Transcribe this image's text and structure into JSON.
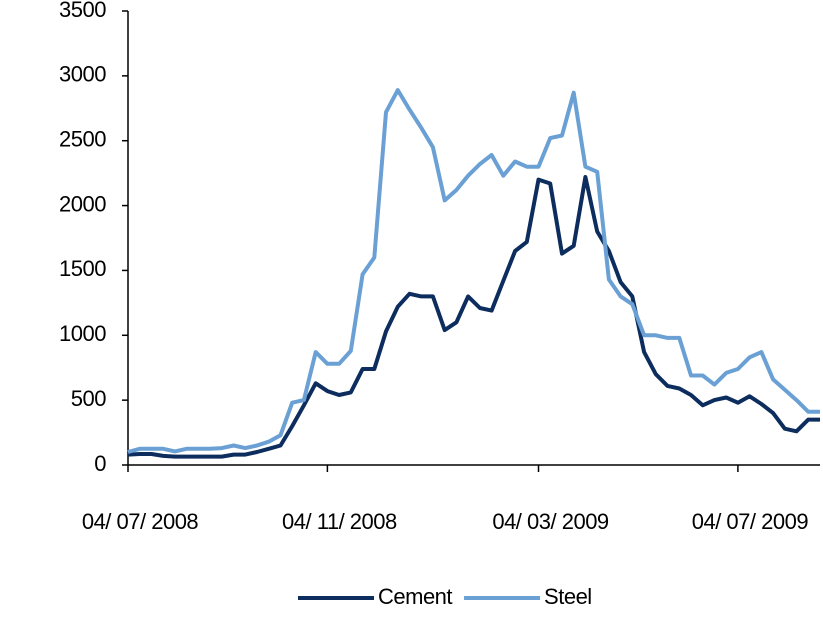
{
  "chart_data": {
    "type": "line",
    "categories": [
      "04/ 07/ 2008",
      null,
      null,
      null,
      null,
      null,
      null,
      null,
      null,
      null,
      null,
      null,
      null,
      null,
      null,
      null,
      null,
      "04/ 11/ 2008",
      null,
      null,
      null,
      null,
      null,
      null,
      null,
      null,
      null,
      null,
      null,
      null,
      null,
      null,
      null,
      null,
      null,
      "04/ 03/ 2009",
      null,
      null,
      null,
      null,
      null,
      null,
      null,
      null,
      null,
      null,
      null,
      null,
      null,
      null,
      null,
      null,
      "04/ 07/ 2009",
      null,
      null,
      null,
      null,
      null,
      null,
      null
    ],
    "series": [
      {
        "name": "Cement",
        "color": "#0d2d5e",
        "values": [
          80,
          85,
          85,
          70,
          65,
          65,
          65,
          65,
          65,
          80,
          80,
          100,
          125,
          150,
          300,
          460,
          630,
          570,
          540,
          560,
          740,
          740,
          1030,
          1220,
          1320,
          1300,
          1300,
          1040,
          1100,
          1300,
          1210,
          1190,
          1420,
          1650,
          1720,
          2200,
          2170,
          1630,
          1690,
          2220,
          1800,
          1650,
          1410,
          1300,
          870,
          700,
          610,
          590,
          540,
          460,
          500,
          520,
          480,
          530,
          470,
          400,
          280,
          260,
          350,
          350
        ]
      },
      {
        "name": "Steel",
        "color": "#6aa0d4",
        "values": [
          100,
          125,
          125,
          125,
          105,
          125,
          125,
          125,
          130,
          150,
          130,
          150,
          180,
          230,
          480,
          500,
          870,
          780,
          780,
          880,
          1470,
          1600,
          2720,
          2890,
          2740,
          2600,
          2450,
          2040,
          2120,
          2230,
          2320,
          2390,
          2230,
          2340,
          2300,
          2300,
          2520,
          2540,
          2870,
          2300,
          2260,
          1430,
          1300,
          1240,
          1000,
          1000,
          980,
          980,
          690,
          690,
          620,
          710,
          740,
          830,
          870,
          660,
          580,
          500,
          410,
          410
        ]
      }
    ],
    "ylim": [
      0,
      3500
    ],
    "yticks": [
      0,
      500,
      1000,
      1500,
      2000,
      2500,
      3000,
      3500
    ],
    "legend": "bottom"
  }
}
